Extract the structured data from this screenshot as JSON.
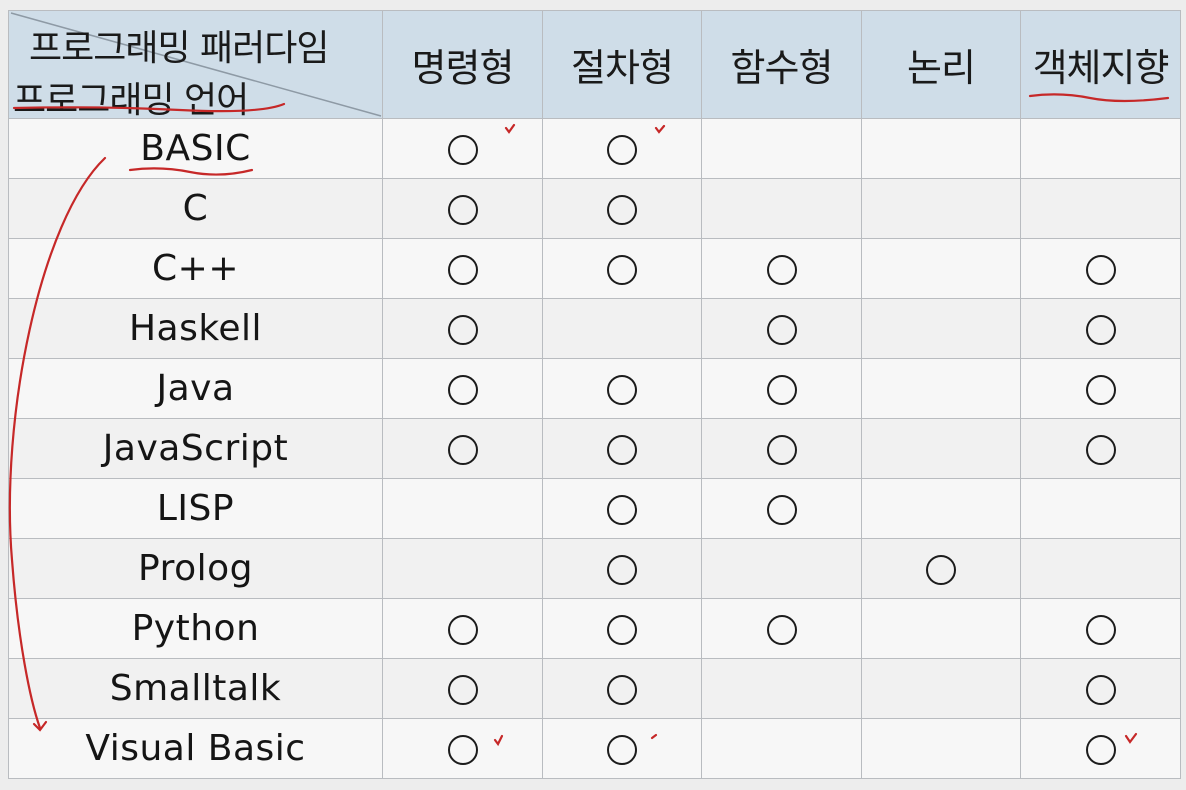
{
  "header": {
    "corner_top": "프로그래밍 패러다임",
    "corner_bottom": "프로그래밍 언어",
    "columns": [
      "명령형",
      "절차형",
      "함수형",
      "논리",
      "객체지향"
    ]
  },
  "rows": [
    {
      "language": "BASIC",
      "marks": [
        "○",
        "○",
        "",
        "",
        ""
      ]
    },
    {
      "language": "C",
      "marks": [
        "○",
        "○",
        "",
        "",
        ""
      ]
    },
    {
      "language": "C++",
      "marks": [
        "○",
        "○",
        "○",
        "",
        "○"
      ]
    },
    {
      "language": "Haskell",
      "marks": [
        "○",
        "",
        "○",
        "",
        "○"
      ]
    },
    {
      "language": "Java",
      "marks": [
        "○",
        "○",
        "○",
        "",
        "○"
      ]
    },
    {
      "language": "JavaScript",
      "marks": [
        "○",
        "○",
        "○",
        "",
        "○"
      ]
    },
    {
      "language": "LISP",
      "marks": [
        "",
        "○",
        "○",
        "",
        ""
      ]
    },
    {
      "language": "Prolog",
      "marks": [
        "",
        "○",
        "",
        "○",
        ""
      ]
    },
    {
      "language": "Python",
      "marks": [
        "○",
        "○",
        "○",
        "",
        "○"
      ]
    },
    {
      "language": "Smalltalk",
      "marks": [
        "○",
        "○",
        "",
        "",
        "○"
      ]
    },
    {
      "language": "Visual Basic",
      "marks": [
        "○",
        "○",
        "",
        "",
        "○"
      ]
    }
  ],
  "colors": {
    "header_bg": "#cfdde8",
    "annotation": "#c62828",
    "grid": "#b9bcc0"
  }
}
